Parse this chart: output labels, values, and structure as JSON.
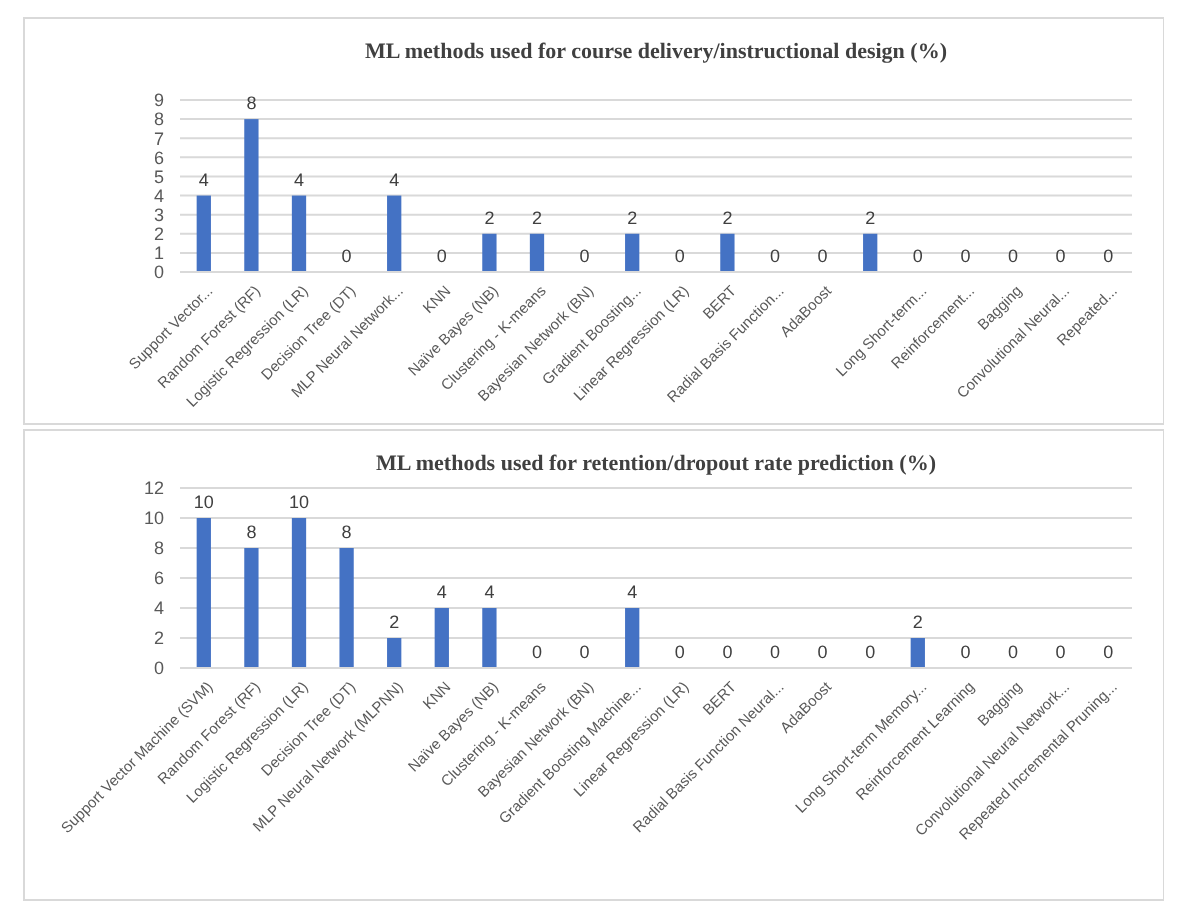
{
  "chart_data": [
    {
      "type": "bar",
      "title": "ML methods used for course delivery/instructional design (%)",
      "categories": [
        "Support Vector...",
        "Random Forest (RF)",
        "Logistic Regression (LR)",
        "Decision Tree (DT)",
        "MLP Neural Network...",
        "KNN",
        "Naïve Bayes (NB)",
        "Clustering - K-means",
        "Bayesian Network (BN)",
        "Gradient Boosting...",
        "Linear Regression (LR)",
        "BERT",
        "Radial Basis Function...",
        "AdaBoost",
        null,
        "Long Short-term...",
        "Reinforcement...",
        "Bagging",
        "Convolutional Neural...",
        "Repeated..."
      ],
      "values": [
        4,
        8,
        4,
        0,
        4,
        0,
        2,
        2,
        0,
        2,
        0,
        2,
        0,
        0,
        2,
        0,
        0,
        0,
        0,
        0
      ],
      "color": "#4472c4",
      "ylim": [
        0,
        9
      ],
      "yticks": [
        0,
        1,
        2,
        3,
        4,
        5,
        6,
        7,
        8,
        9
      ],
      "grid": "y",
      "data_labels": true
    },
    {
      "type": "bar",
      "title": "ML methods used for retention/dropout rate prediction (%)",
      "categories": [
        "Support Vector Machine (SVM)",
        "Random Forest (RF)",
        "Logistic Regression (LR)",
        "Decision Tree (DT)",
        "MLP Neural Network (MLPNN)",
        "KNN",
        "Naïve Bayes (NB)",
        "Clustering - K-means",
        "Bayesian Network (BN)",
        "Gradient Boosting Machine...",
        "Linear Regression (LR)",
        "BERT",
        "Radial Basis Function Neural...",
        "AdaBoost",
        null,
        "Long Short-term Memory...",
        "Reinforcement  Learning",
        "Bagging",
        "Convolutional Neural Network...",
        "Repeated Incremental Pruning..."
      ],
      "values": [
        10,
        8,
        10,
        8,
        2,
        4,
        4,
        0,
        0,
        4,
        0,
        0,
        0,
        0,
        0,
        2,
        0,
        0,
        0,
        0
      ],
      "color": "#4472c4",
      "ylim": [
        0,
        12
      ],
      "yticks": [
        0,
        2,
        4,
        6,
        8,
        10,
        12
      ],
      "grid": "y",
      "data_labels": true
    }
  ]
}
